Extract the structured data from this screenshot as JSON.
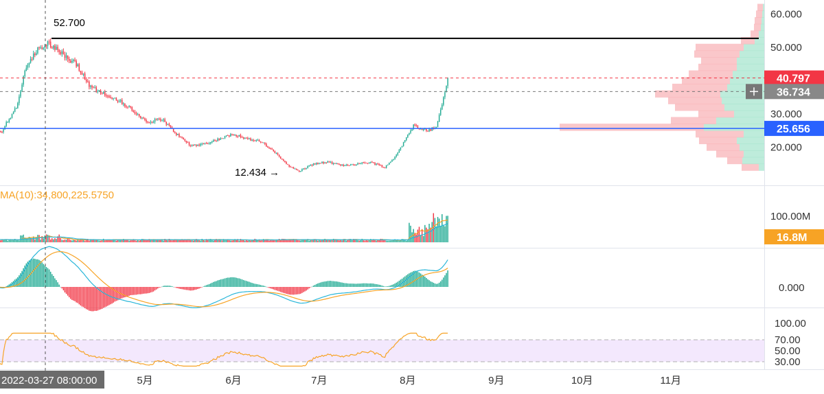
{
  "chart_data": {
    "type": "candlestick",
    "x_axis": {
      "crosshair_label": "2022-03-27 08:00:00",
      "month_labels": [
        "5月",
        "6月",
        "7月",
        "8月",
        "9月",
        "10月",
        "11月"
      ],
      "months": [
        "2022-05",
        "2022-06",
        "2022-07",
        "2022-08",
        "2022-09",
        "2022-10",
        "2022-11"
      ]
    },
    "price_pane": {
      "y_ticks": [
        "60.000",
        "50.000",
        "30.000",
        "20.000"
      ],
      "ylim": [
        10,
        65
      ],
      "annotations": {
        "high_label": "52.700",
        "high_value": 52.7,
        "low_label": "12.434 →",
        "low_value": 12.434
      },
      "last_price": {
        "label": "40.797",
        "value": 40.797,
        "color": "#f23645"
      },
      "crosshair_price": {
        "label": "36.734",
        "value": 36.734,
        "color": "#888888"
      },
      "blue_line": {
        "label": "25.656",
        "value": 25.656,
        "color": "#2962ff"
      },
      "anchors": [
        [
          "2022-03-07",
          25.5
        ],
        [
          "2022-03-12",
          25.0
        ],
        [
          "2022-03-17",
          32.0
        ],
        [
          "2022-03-20",
          43.0
        ],
        [
          "2022-03-24",
          49.0
        ],
        [
          "2022-03-28",
          51.5
        ],
        [
          "2022-04-02",
          48.0
        ],
        [
          "2022-04-07",
          45.0
        ],
        [
          "2022-04-12",
          38.0
        ],
        [
          "2022-04-17",
          36.0
        ],
        [
          "2022-04-22",
          34.0
        ],
        [
          "2022-04-27",
          31.0
        ],
        [
          "2022-05-02",
          27.5
        ],
        [
          "2022-05-07",
          28.5
        ],
        [
          "2022-05-12",
          24.0
        ],
        [
          "2022-05-17",
          20.5
        ],
        [
          "2022-05-22",
          21.0
        ],
        [
          "2022-05-27",
          22.5
        ],
        [
          "2022-06-01",
          24.0
        ],
        [
          "2022-06-06",
          22.5
        ],
        [
          "2022-06-11",
          21.5
        ],
        [
          "2022-06-16",
          18.0
        ],
        [
          "2022-06-21",
          14.0
        ],
        [
          "2022-06-24",
          12.8
        ],
        [
          "2022-06-29",
          15.0
        ],
        [
          "2022-07-04",
          15.5
        ],
        [
          "2022-07-09",
          14.5
        ],
        [
          "2022-07-14",
          15.0
        ],
        [
          "2022-07-19",
          15.5
        ],
        [
          "2022-07-24",
          14.0
        ],
        [
          "2022-07-27",
          16.5
        ],
        [
          "2022-07-31",
          22.0
        ],
        [
          "2022-08-03",
          26.5
        ],
        [
          "2022-08-08",
          25.0
        ],
        [
          "2022-08-11",
          26.0
        ],
        [
          "2022-08-13",
          33.0
        ],
        [
          "2022-08-15",
          40.797
        ]
      ]
    },
    "volume_profile": {
      "bins": [
        [
          14,
          8,
          25
        ],
        [
          16,
          32,
          22
        ],
        [
          18,
          30,
          40
        ],
        [
          20,
          36,
          48
        ],
        [
          22,
          40,
          55
        ],
        [
          24,
          30,
          70
        ],
        [
          26,
          88,
          210
        ],
        [
          28,
          70,
          66
        ],
        [
          30,
          44,
          52
        ],
        [
          32,
          58,
          72
        ],
        [
          34,
          62,
          78
        ],
        [
          36,
          64,
          95
        ],
        [
          38,
          54,
          80
        ],
        [
          40,
          50,
          70
        ],
        [
          42,
          46,
          64
        ],
        [
          44,
          40,
          56
        ],
        [
          46,
          40,
          52
        ],
        [
          48,
          36,
          66
        ],
        [
          50,
          30,
          70
        ],
        [
          52,
          14,
          20
        ],
        [
          54,
          8,
          12
        ],
        [
          56,
          5,
          10
        ],
        [
          58,
          4,
          10
        ],
        [
          60,
          3,
          9
        ],
        [
          62,
          2,
          8
        ]
      ],
      "up_color": "#a8e6cf",
      "down_color": "#f8b4b8"
    },
    "volume_pane": {
      "legend": "MA(10):34,800,225.5750",
      "y_ticks": [
        "100.00M"
      ],
      "ylim": [
        0,
        140
      ],
      "unit": "M",
      "current_label": "16.8M",
      "current_value": 16.8,
      "current_color": "#f7a325"
    },
    "macd_pane": {
      "y_ticks": [
        "0.000"
      ],
      "ylim": [
        -4,
        4
      ]
    },
    "rsi_pane": {
      "y_ticks": [
        "100.00",
        "70.00",
        "50.00",
        "30.00"
      ],
      "ylim": [
        20,
        100
      ],
      "band": [
        30,
        70
      ],
      "band_color": "#f3e8fd",
      "line_color": "#f7a325"
    },
    "colors": {
      "up": "#22ab94",
      "down": "#f23645",
      "ma_orange": "#f7a325",
      "signal_blue": "#29b6d9",
      "high_line": "#000000"
    }
  }
}
